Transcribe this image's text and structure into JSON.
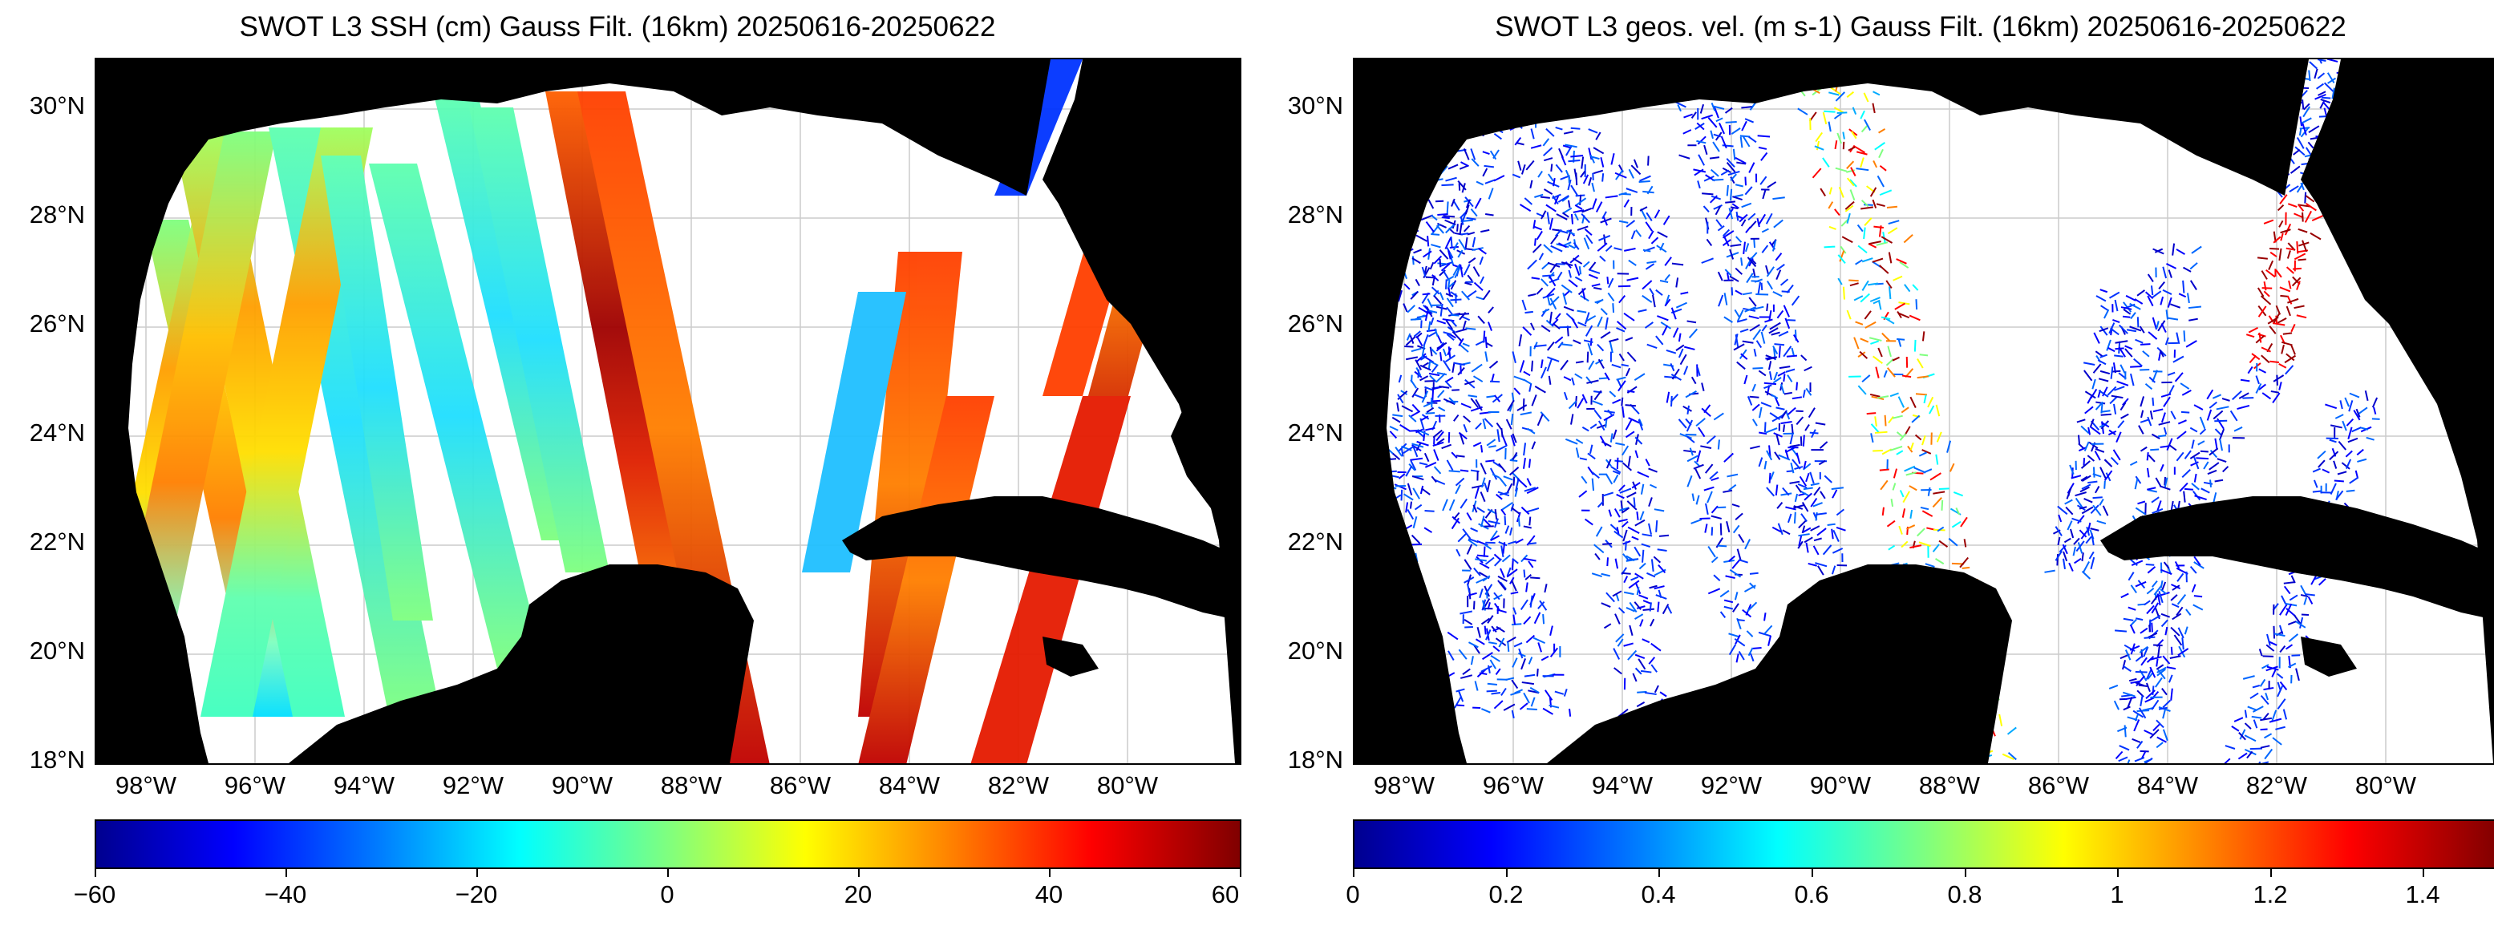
{
  "left_panel": {
    "title": "SWOT L3 SSH (cm) Gauss Filt. (16km) 20250616-20250622",
    "y_ticks": [
      "30°N",
      "28°N",
      "26°N",
      "24°N",
      "22°N",
      "20°N",
      "18°N"
    ],
    "x_ticks": [
      "98°W",
      "96°W",
      "94°W",
      "92°W",
      "90°W",
      "88°W",
      "86°W",
      "84°W",
      "82°W",
      "80°W"
    ],
    "colorbar": {
      "min": -60,
      "max": 60,
      "ticks": [
        "−60",
        "−40",
        "−20",
        "0",
        "20",
        "40",
        "60"
      ],
      "colormap": "jet"
    }
  },
  "right_panel": {
    "title": "SWOT L3 geos. vel. (m s-1) Gauss Filt. (16km) 20250616-20250622",
    "y_ticks": [
      "30°N",
      "28°N",
      "26°N",
      "24°N",
      "22°N",
      "20°N",
      "18°N"
    ],
    "x_ticks": [
      "98°W",
      "96°W",
      "94°W",
      "92°W",
      "90°W",
      "88°W",
      "86°W",
      "84°W",
      "82°W",
      "80°W"
    ],
    "colorbar": {
      "min": 0,
      "max": 1.5,
      "ticks": [
        "0",
        "0.2",
        "0.4",
        "0.6",
        "0.8",
        "1",
        "1.2",
        "1.4"
      ],
      "colormap": "jet"
    }
  },
  "colors": {
    "land": "#000000",
    "ocean_nodata": "#ffffff",
    "grid": "#cccccc"
  }
}
